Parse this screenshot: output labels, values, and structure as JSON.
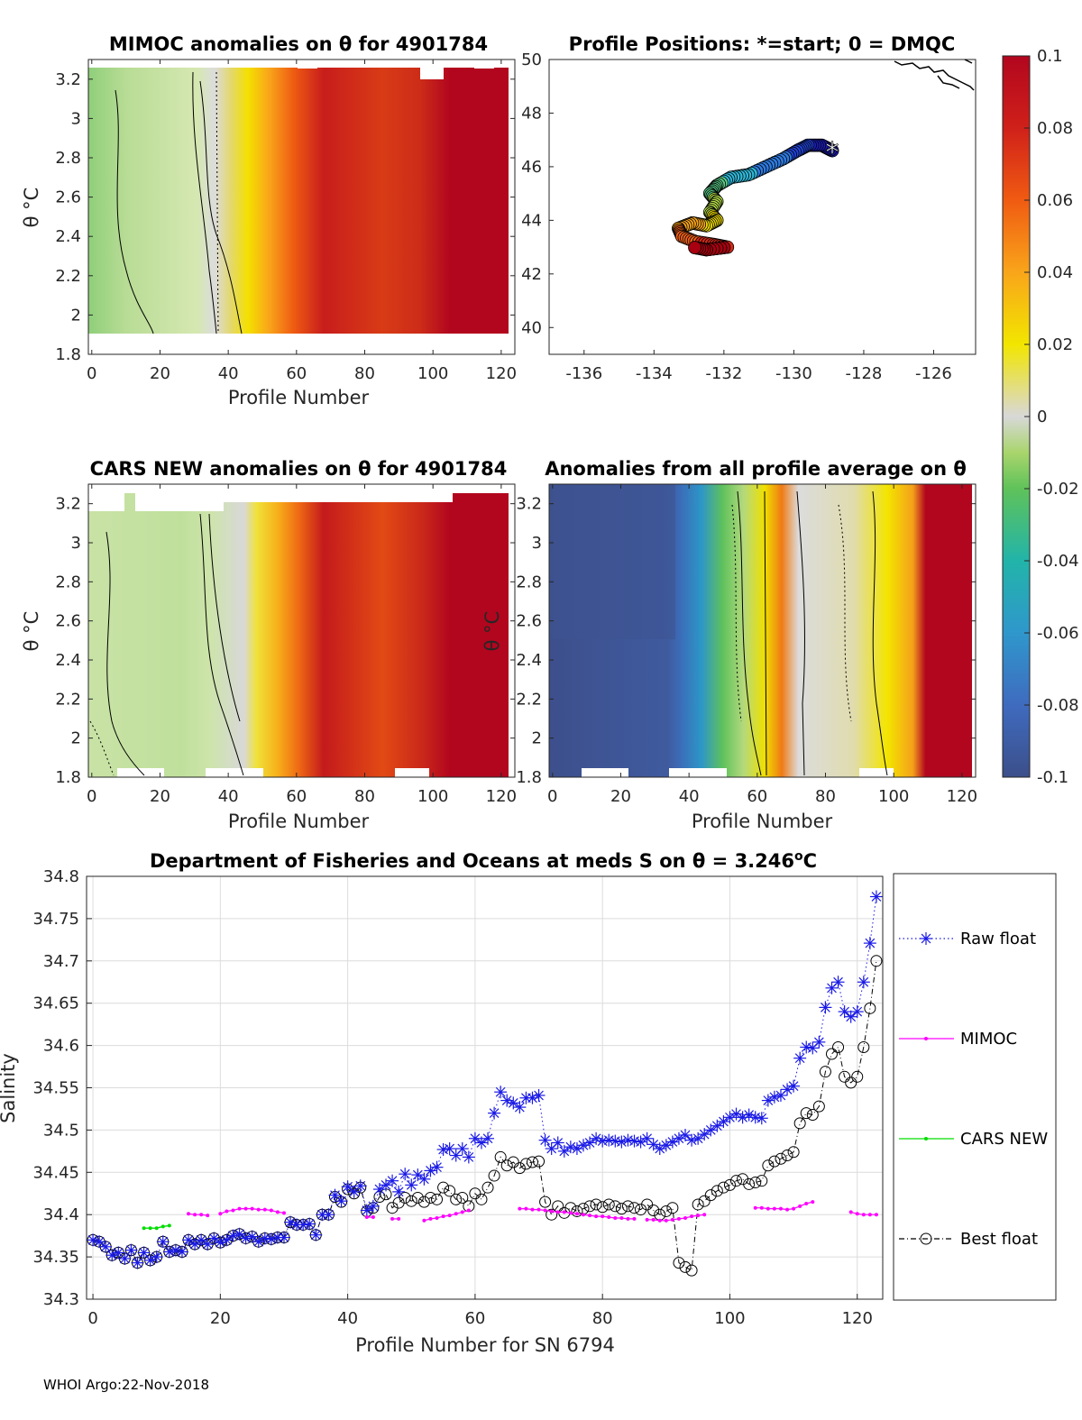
{
  "figure": {
    "credit": "WHOI Argo:22-Nov-2018"
  },
  "colors": {
    "scale": [
      "#3c4f8a",
      "#3f6bbf",
      "#2f97cc",
      "#22b4a9",
      "#5fc25a",
      "#a9d56c",
      "#d8d8d8",
      "#f2e600",
      "#f9a51a",
      "#f05b12",
      "#b2061e"
    ],
    "raw": "#1a1ae6",
    "mimoc": "#ff00ff",
    "cars": "#00dd00",
    "best": "#000000",
    "grid": "#dcdcdc"
  },
  "panels": {
    "mimoc": {
      "title": "MIMOC anomalies on θ  for 4901784",
      "xlabel": "Profile Number",
      "ylabel": "θ °C",
      "xticks": [
        "0",
        "20",
        "40",
        "60",
        "80",
        "100",
        "120"
      ],
      "yticks": [
        "1.8",
        "2",
        "2.2",
        "2.4",
        "2.6",
        "2.8",
        "3",
        "3.2"
      ]
    },
    "positions": {
      "title": "Profile Positions: *=start; 0 = DMQC",
      "xticks": [
        "-136",
        "-134",
        "-132",
        "-130",
        "-128",
        "-126"
      ],
      "yticks": [
        "40",
        "42",
        "44",
        "46",
        "48",
        "50"
      ]
    },
    "cars": {
      "title": "CARS NEW anomalies on θ for 4901784",
      "xlabel": "Profile Number",
      "ylabel": "θ °C",
      "xticks": [
        "0",
        "20",
        "40",
        "60",
        "80",
        "100",
        "120"
      ],
      "yticks": [
        "1.8",
        "2",
        "2.2",
        "2.4",
        "2.6",
        "2.8",
        "3",
        "3.2"
      ]
    },
    "average": {
      "title": "Anomalies from all profile average on θ",
      "xlabel": "Profile Number",
      "ylabel": "θ °C",
      "xticks": [
        "0",
        "20",
        "40",
        "60",
        "80",
        "100",
        "120"
      ],
      "yticks": [
        "1.8",
        "2",
        "2.2",
        "2.4",
        "2.6",
        "2.8",
        "3",
        "3.2"
      ]
    }
  },
  "colorbar": {
    "ticks": [
      "0.1",
      "0.08",
      "0.06",
      "0.04",
      "0.02",
      "0",
      "-0.02",
      "-0.04",
      "-0.06",
      "-0.08",
      "-0.1"
    ]
  },
  "chart_data": [
    {
      "id": "mimoc_anomalies",
      "type": "heatmap",
      "title": "MIMOC anomalies on θ  for 4901784",
      "xlabel": "Profile Number",
      "ylabel": "θ °C",
      "xlim": [
        -1,
        124
      ],
      "ylim": [
        1.8,
        3.3
      ],
      "clim": [
        -0.1,
        0.1
      ],
      "xticks": [
        0,
        20,
        40,
        60,
        80,
        100,
        120
      ],
      "yticks": [
        1.8,
        2,
        2.2,
        2.4,
        2.6,
        2.8,
        3,
        3.2
      ]
    },
    {
      "id": "profile_positions",
      "type": "scatter",
      "title": "Profile Positions: *=start; 0 = DMQC",
      "xlim": [
        -137,
        -124.8
      ],
      "ylim": [
        39,
        50
      ],
      "xticks": [
        -136,
        -134,
        -132,
        -130,
        -128,
        -126
      ],
      "yticks": [
        40,
        42,
        44,
        46,
        48,
        50
      ],
      "start": {
        "lon": -128.9,
        "lat": 46.6
      }
    },
    {
      "id": "cars_new_anomalies",
      "type": "heatmap",
      "title": "CARS NEW anomalies on θ for 4901784",
      "xlabel": "Profile Number",
      "ylabel": "θ °C",
      "xlim": [
        -1,
        124
      ],
      "ylim": [
        1.8,
        3.3
      ],
      "clim": [
        -0.1,
        0.1
      ],
      "xticks": [
        0,
        20,
        40,
        60,
        80,
        100,
        120
      ],
      "yticks": [
        1.8,
        2,
        2.2,
        2.4,
        2.6,
        2.8,
        3,
        3.2
      ]
    },
    {
      "id": "profile_average_anomalies",
      "type": "heatmap",
      "title": "Anomalies from all profile average on θ",
      "xlabel": "Profile Number",
      "ylabel": "θ °C",
      "xlim": [
        -1,
        124
      ],
      "ylim": [
        1.8,
        3.3
      ],
      "clim": [
        -0.1,
        0.1
      ],
      "xticks": [
        0,
        20,
        40,
        60,
        80,
        100,
        120
      ],
      "yticks": [
        1.8,
        2,
        2.2,
        2.4,
        2.6,
        2.8,
        3,
        3.2
      ]
    },
    {
      "id": "salinity",
      "type": "line",
      "title_main": "Department of Fisheries and Oceans at meds S on θ = 3.246",
      "title_sup": "o",
      "title_unit": "C",
      "xlabel": "Profile Number for SN 6794",
      "ylabel": "Salinity",
      "xlim": [
        -1,
        124
      ],
      "ylim": [
        34.3,
        34.8
      ],
      "xticks": [
        0,
        20,
        40,
        60,
        80,
        100,
        120
      ],
      "yticks": [
        34.3,
        34.35,
        34.4,
        34.45,
        34.5,
        34.55,
        34.6,
        34.65,
        34.7,
        34.75,
        34.8
      ],
      "yticklabels": [
        "34.3",
        "34.35",
        "34.4",
        "34.45",
        "34.5",
        "34.55",
        "34.6",
        "34.65",
        "34.7",
        "34.75",
        "34.8"
      ],
      "xticklabels": [
        "0",
        "20",
        "40",
        "60",
        "80",
        "100",
        "120"
      ],
      "legend": [
        "Raw float",
        "MIMOC",
        "CARS NEW",
        "Best float"
      ],
      "series": [
        {
          "name": "Raw float",
          "x_start": 0,
          "values": [
            34.37,
            34.368,
            34.362,
            34.352,
            34.355,
            34.348,
            34.358,
            34.343,
            34.355,
            34.346,
            34.35,
            34.368,
            34.356,
            34.358,
            34.356,
            34.37,
            34.365,
            34.37,
            34.365,
            34.372,
            34.367,
            34.37,
            34.375,
            34.377,
            34.372,
            34.374,
            34.368,
            34.372,
            34.371,
            34.373,
            34.373,
            34.391,
            34.388,
            34.388,
            34.389,
            34.376,
            34.4,
            34.4,
            34.423,
            34.416,
            34.433,
            34.427,
            34.434,
            34.405,
            34.41,
            34.43,
            34.435,
            34.44,
            34.427,
            34.448,
            34.435,
            34.447,
            34.442,
            34.452,
            34.456,
            34.477,
            34.478,
            34.47,
            34.478,
            34.468,
            34.49,
            34.485,
            34.49,
            34.52,
            34.545,
            34.535,
            34.532,
            34.527,
            34.538,
            34.538,
            34.541,
            34.488,
            34.478,
            34.485,
            34.475,
            34.48,
            34.478,
            34.482,
            34.485,
            34.49,
            34.487,
            34.488,
            34.487,
            34.486,
            34.488,
            34.487,
            34.486,
            34.49,
            34.483,
            34.478,
            34.482,
            34.486,
            34.49,
            34.494,
            34.488,
            34.49,
            34.495,
            34.5,
            34.505,
            34.51,
            34.515,
            34.519,
            34.515,
            34.518,
            34.515,
            34.514,
            34.535,
            34.539,
            34.541,
            34.548,
            34.552,
            34.585,
            34.598,
            34.597,
            34.604,
            34.645,
            34.668,
            34.675,
            34.64,
            34.634,
            34.64,
            34.675,
            34.721,
            34.776
          ]
        },
        {
          "name": "MIMOC",
          "segments": [
            {
              "x_start": 15,
              "values": [
                34.401,
                34.4,
                34.4,
                34.399
              ]
            },
            {
              "x_start": 20,
              "values": [
                34.401,
                34.404,
                34.405,
                34.407,
                34.407,
                34.407,
                34.406,
                34.406,
                34.405,
                34.403,
                34.402
              ]
            },
            {
              "x_start": 43,
              "values": [
                34.397,
                34.397
              ]
            },
            {
              "x_start": 47,
              "values": [
                34.395,
                34.395
              ]
            },
            {
              "x_start": 52,
              "values": [
                34.393,
                34.395,
                34.396,
                34.398,
                34.399,
                34.401,
                34.403,
                34.405
              ]
            },
            {
              "x_start": 67,
              "values": [
                34.407,
                34.407,
                34.406,
                34.406,
                34.405,
                34.404,
                34.403,
                34.403,
                34.402,
                34.401,
                34.4,
                34.399,
                34.398,
                34.398,
                34.397,
                34.396,
                34.396,
                34.395,
                34.395
              ]
            },
            {
              "x_start": 87,
              "values": [
                34.394,
                34.394,
                34.393,
                34.393,
                34.394,
                34.395,
                34.396,
                34.398,
                34.399,
                34.4
              ]
            },
            {
              "x_start": 104,
              "values": [
                34.408,
                34.408,
                34.407,
                34.407,
                34.407,
                34.406,
                34.407,
                34.41,
                34.413,
                34.415
              ]
            },
            {
              "x_start": 119,
              "values": [
                34.403,
                34.401,
                34.4,
                34.4,
                34.4
              ]
            }
          ]
        },
        {
          "name": "CARS NEW",
          "x_start": 8,
          "values": [
            34.384,
            34.384,
            34.384,
            34.386,
            34.387
          ]
        },
        {
          "name": "Best float",
          "x_start": 0,
          "values": [
            34.37,
            34.368,
            34.362,
            34.352,
            34.355,
            34.348,
            34.358,
            34.343,
            34.355,
            34.346,
            34.35,
            34.368,
            34.356,
            34.358,
            34.356,
            34.37,
            34.365,
            34.37,
            34.365,
            34.372,
            34.367,
            34.37,
            34.375,
            34.377,
            34.372,
            34.374,
            34.368,
            34.372,
            34.371,
            34.373,
            34.373,
            34.391,
            34.388,
            34.388,
            34.389,
            34.376,
            34.4,
            34.4,
            34.421,
            34.415,
            34.43,
            34.425,
            34.432,
            34.404,
            34.408,
            34.421,
            34.424,
            34.408,
            34.414,
            34.42,
            34.416,
            34.42,
            34.415,
            34.42,
            34.418,
            34.432,
            34.428,
            34.418,
            34.42,
            34.41,
            34.425,
            34.418,
            34.432,
            34.446,
            34.468,
            34.458,
            34.462,
            34.455,
            34.46,
            34.462,
            34.463,
            34.415,
            34.4,
            34.41,
            34.402,
            34.408,
            34.404,
            34.407,
            34.41,
            34.412,
            34.409,
            34.412,
            34.41,
            34.407,
            34.41,
            34.408,
            34.406,
            34.412,
            34.405,
            34.4,
            34.404,
            34.408,
            34.343,
            34.338,
            34.334,
            34.412,
            34.416,
            34.423,
            34.428,
            34.432,
            34.435,
            34.44,
            34.442,
            34.436,
            34.438,
            34.44,
            34.458,
            34.463,
            34.466,
            34.47,
            34.474,
            34.508,
            34.52,
            34.518,
            34.528,
            34.569,
            34.59,
            34.598,
            34.563,
            34.556,
            34.563,
            34.598,
            34.644,
            34.7
          ]
        }
      ]
    }
  ]
}
